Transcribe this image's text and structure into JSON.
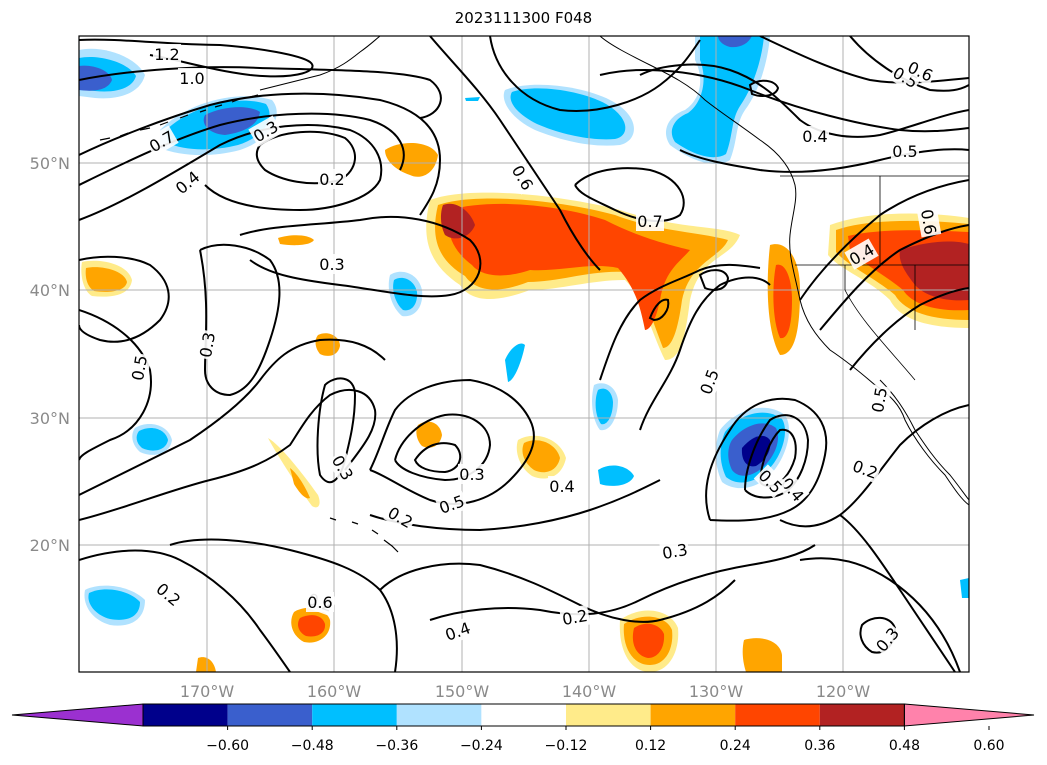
{
  "title": "2023111300 F048",
  "lat_labels": [
    "50°N",
    "40°N",
    "30°N",
    "20°N"
  ],
  "lon_labels": [
    "170°W",
    "160°W",
    "150°W",
    "140°W",
    "130°W",
    "120°W"
  ],
  "colorbar": {
    "ticks": [
      "−0.60",
      "−0.48",
      "−0.36",
      "−0.24",
      "−0.12",
      "0.12",
      "0.24",
      "0.36",
      "0.48",
      "0.60"
    ],
    "colors": [
      "#9b30d0",
      "#00008b",
      "#3a5fcd",
      "#00bfff",
      "#b0e2ff",
      "#ffffff",
      "#ffeb8a",
      "#ffa500",
      "#ff4500",
      "#b22222",
      "#ff82ab"
    ]
  },
  "contour_labels": [
    {
      "text": "1.2"
    },
    {
      "text": "1.0"
    },
    {
      "text": "0.7"
    },
    {
      "text": "0.3"
    },
    {
      "text": "0.4"
    },
    {
      "text": "0.2"
    },
    {
      "text": "0.3"
    },
    {
      "text": "0.6"
    },
    {
      "text": "0.7"
    },
    {
      "text": "0.5"
    },
    {
      "text": "0.6"
    },
    {
      "text": "0.5"
    },
    {
      "text": "0.4"
    },
    {
      "text": "0.5"
    },
    {
      "text": "0.3"
    },
    {
      "text": "0.3"
    },
    {
      "text": "0.5"
    },
    {
      "text": "0.2"
    },
    {
      "text": "0.3"
    },
    {
      "text": "0.4"
    },
    {
      "text": "0.5"
    },
    {
      "text": "0.4"
    },
    {
      "text": "0.5"
    },
    {
      "text": "0.6"
    },
    {
      "text": "0.5"
    },
    {
      "text": "0.2"
    },
    {
      "text": "0.4"
    },
    {
      "text": "0.3"
    },
    {
      "text": "0.2"
    },
    {
      "text": "0.2"
    },
    {
      "text": "0.4"
    },
    {
      "text": "0.2"
    },
    {
      "text": "0.3"
    },
    {
      "text": "0.6"
    }
  ]
}
